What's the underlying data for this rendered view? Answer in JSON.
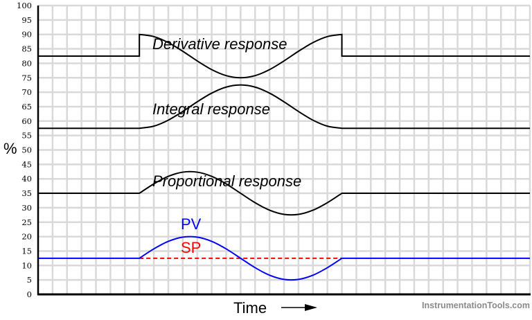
{
  "chart_data": {
    "type": "line",
    "title": "",
    "xlabel": "Time",
    "ylabel": "%",
    "xlim": [
      0,
      34
    ],
    "ylim": [
      0,
      100
    ],
    "yticks": [
      0,
      5,
      10,
      15,
      20,
      25,
      30,
      35,
      40,
      45,
      50,
      55,
      60,
      65,
      70,
      75,
      80,
      85,
      90,
      95,
      100
    ],
    "grid": true,
    "watermark": "InstrumentationTools.com",
    "colors": {
      "pv": "#0000ff",
      "sp": "#ff0000",
      "responses": "#000000",
      "grid": "#d9d9d9"
    },
    "series": [
      {
        "name": "Derivative response",
        "style": "solid",
        "color": "#000000",
        "x": [
          0,
          7,
          7,
          8,
          9,
          10,
          11,
          12,
          13,
          14,
          15,
          16,
          17,
          18,
          19,
          20,
          21,
          21,
          34
        ],
        "y": [
          82.5,
          82.5,
          90,
          89.26,
          87.18,
          84.17,
          80.83,
          77.82,
          75.74,
          75,
          75.74,
          77.82,
          80.83,
          84.17,
          87.18,
          89.26,
          90,
          82.5,
          82.5
        ]
      },
      {
        "name": "Integral response",
        "style": "solid",
        "color": "#000000",
        "x": [
          0,
          7,
          8,
          9,
          10,
          11,
          12,
          13,
          14,
          15,
          16,
          17,
          18,
          19,
          20,
          21,
          34
        ],
        "y": [
          57.5,
          57.5,
          58.24,
          60.32,
          63.33,
          66.67,
          69.68,
          71.76,
          72.5,
          71.76,
          69.68,
          66.67,
          63.33,
          60.32,
          58.24,
          57.5,
          57.5
        ]
      },
      {
        "name": "Proportional response",
        "style": "solid",
        "color": "#000000",
        "x": [
          0,
          7,
          8,
          9,
          10,
          11,
          12,
          13,
          14,
          15,
          16,
          17,
          18,
          19,
          20,
          21,
          34
        ],
        "y": [
          35,
          35,
          38.25,
          40.86,
          42.31,
          42.31,
          40.86,
          38.25,
          35,
          31.75,
          29.14,
          27.69,
          27.69,
          29.14,
          31.75,
          35,
          35
        ]
      },
      {
        "name": "SP",
        "style": "dashed",
        "color": "#ff0000",
        "x": [
          7,
          21
        ],
        "y": [
          12.5,
          12.5
        ]
      },
      {
        "name": "PV",
        "style": "solid",
        "color": "#0000ff",
        "x": [
          0,
          7,
          8,
          9,
          10,
          11,
          12,
          13,
          14,
          15,
          16,
          17,
          18,
          19,
          20,
          21,
          34
        ],
        "y": [
          12.5,
          12.5,
          15.75,
          18.36,
          19.81,
          19.81,
          18.36,
          15.75,
          12.5,
          9.25,
          6.64,
          5.19,
          5.19,
          6.64,
          9.25,
          12.5,
          12.5
        ]
      }
    ]
  }
}
